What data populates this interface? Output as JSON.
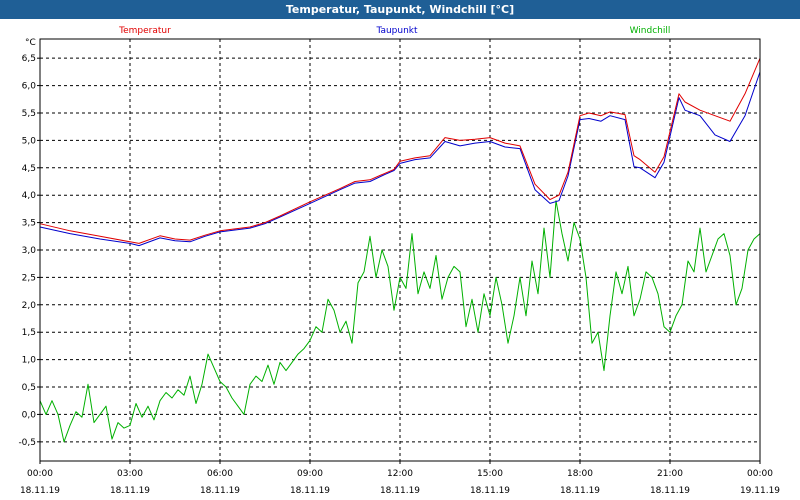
{
  "window": {
    "title": "Temperatur, Taupunkt, Windchill [°C]"
  },
  "chart_data": {
    "type": "line",
    "unit": "°C",
    "y_ticks": [
      "-0,5",
      "0,0",
      "0,5",
      "1,0",
      "1,5",
      "2,0",
      "2,5",
      "3,0",
      "3,5",
      "4,0",
      "4,5",
      "5,0",
      "5,5",
      "6,0",
      "6,5"
    ],
    "ylim": [
      -0.85,
      6.85
    ],
    "xlim_hours": [
      0,
      24
    ],
    "x_ticks": [
      {
        "time": "00:00",
        "date": "18.11.19"
      },
      {
        "time": "03:00",
        "date": "18.11.19"
      },
      {
        "time": "06:00",
        "date": "18.11.19"
      },
      {
        "time": "09:00",
        "date": "18.11.19"
      },
      {
        "time": "12:00",
        "date": "18.11.19"
      },
      {
        "time": "15:00",
        "date": "18.11.19"
      },
      {
        "time": "18:00",
        "date": "18.11.19"
      },
      {
        "time": "21:00",
        "date": "18.11.19"
      },
      {
        "time": "00:00",
        "date": "19.11.19"
      }
    ],
    "grid": true,
    "series": [
      {
        "name": "Temperatur",
        "color": "#e00000",
        "x": [
          0,
          1,
          2,
          3,
          3.3,
          4,
          4.5,
          5,
          5.5,
          6,
          7,
          7.5,
          8,
          9,
          10,
          10.5,
          11,
          11.5,
          11.8,
          12,
          12.5,
          13,
          13.5,
          14,
          14.5,
          15,
          15.5,
          16,
          16.5,
          17,
          17.3,
          17.6,
          18,
          18.3,
          18.7,
          19,
          19.5,
          19.8,
          20,
          20.5,
          20.8,
          21.3,
          21.5,
          22,
          22.5,
          23,
          23.5,
          24
        ],
        "values": [
          3.48,
          3.35,
          3.25,
          3.15,
          3.12,
          3.26,
          3.2,
          3.18,
          3.27,
          3.35,
          3.42,
          3.5,
          3.62,
          3.88,
          4.12,
          4.25,
          4.28,
          4.4,
          4.47,
          4.62,
          4.68,
          4.72,
          5.05,
          5.0,
          5.02,
          5.05,
          4.95,
          4.9,
          4.2,
          3.92,
          4.0,
          4.42,
          5.45,
          5.5,
          5.45,
          5.52,
          5.47,
          4.72,
          4.65,
          4.42,
          4.7,
          5.85,
          5.7,
          5.55,
          5.45,
          5.35,
          5.85,
          6.5
        ]
      },
      {
        "name": "Taupunkt",
        "color": "#0000cc",
        "x": [
          0,
          1,
          2,
          3,
          3.3,
          4,
          4.5,
          5,
          5.5,
          6,
          7,
          7.5,
          8,
          9,
          10,
          10.5,
          11,
          11.5,
          11.8,
          12,
          12.5,
          13,
          13.5,
          14,
          14.5,
          15,
          15.5,
          16,
          16.5,
          17,
          17.3,
          17.6,
          18,
          18.3,
          18.7,
          19,
          19.5,
          19.8,
          20,
          20.5,
          20.8,
          21.3,
          21.5,
          22,
          22.5,
          23,
          23.5,
          24
        ],
        "values": [
          3.42,
          3.3,
          3.2,
          3.12,
          3.08,
          3.22,
          3.17,
          3.15,
          3.25,
          3.33,
          3.4,
          3.48,
          3.6,
          3.85,
          4.1,
          4.22,
          4.25,
          4.38,
          4.45,
          4.58,
          4.65,
          4.68,
          4.98,
          4.9,
          4.95,
          4.98,
          4.88,
          4.85,
          4.1,
          3.85,
          3.9,
          4.35,
          5.38,
          5.4,
          5.35,
          5.45,
          5.38,
          4.52,
          4.5,
          4.32,
          4.6,
          5.78,
          5.55,
          5.45,
          5.1,
          4.98,
          5.45,
          6.25
        ]
      },
      {
        "name": "Windchill",
        "color": "#00b000",
        "x": [
          0,
          0.2,
          0.4,
          0.6,
          0.8,
          1,
          1.2,
          1.4,
          1.6,
          1.8,
          2,
          2.2,
          2.4,
          2.6,
          2.8,
          3,
          3.2,
          3.4,
          3.6,
          3.8,
          4,
          4.2,
          4.4,
          4.6,
          4.8,
          5,
          5.2,
          5.4,
          5.6,
          5.8,
          6,
          6.2,
          6.4,
          6.6,
          6.8,
          7,
          7.2,
          7.4,
          7.6,
          7.8,
          8,
          8.2,
          8.4,
          8.6,
          8.8,
          9,
          9.2,
          9.4,
          9.6,
          9.8,
          10,
          10.2,
          10.4,
          10.6,
          10.8,
          11,
          11.2,
          11.4,
          11.6,
          11.8,
          12,
          12.2,
          12.4,
          12.6,
          12.8,
          13,
          13.2,
          13.4,
          13.6,
          13.8,
          14,
          14.2,
          14.4,
          14.6,
          14.8,
          15,
          15.2,
          15.4,
          15.6,
          15.8,
          16,
          16.2,
          16.4,
          16.6,
          16.8,
          17,
          17.2,
          17.4,
          17.6,
          17.8,
          18,
          18.2,
          18.4,
          18.6,
          18.8,
          19,
          19.2,
          19.4,
          19.6,
          19.8,
          20,
          20.2,
          20.4,
          20.6,
          20.8,
          21,
          21.2,
          21.4,
          21.6,
          21.8,
          22,
          22.2,
          22.4,
          22.6,
          22.8,
          23,
          23.2,
          23.4,
          23.6,
          23.8,
          24
        ],
        "values": [
          0.25,
          0.0,
          0.25,
          0.0,
          -0.5,
          -0.2,
          0.05,
          -0.05,
          0.55,
          -0.15,
          0.0,
          0.15,
          -0.45,
          -0.15,
          -0.25,
          -0.2,
          0.2,
          -0.05,
          0.15,
          -0.1,
          0.25,
          0.4,
          0.3,
          0.45,
          0.35,
          0.7,
          0.2,
          0.55,
          1.1,
          0.85,
          0.6,
          0.5,
          0.3,
          0.15,
          0.0,
          0.55,
          0.7,
          0.6,
          0.9,
          0.55,
          0.95,
          0.8,
          0.95,
          1.1,
          1.2,
          1.35,
          1.6,
          1.5,
          2.1,
          1.9,
          1.5,
          1.7,
          1.3,
          2.4,
          2.6,
          3.25,
          2.5,
          3.0,
          2.7,
          1.9,
          2.5,
          2.3,
          3.3,
          2.2,
          2.6,
          2.3,
          2.9,
          2.1,
          2.5,
          2.7,
          2.6,
          1.6,
          2.1,
          1.5,
          2.2,
          1.8,
          2.5,
          2.0,
          1.3,
          1.8,
          2.5,
          1.8,
          2.8,
          2.2,
          3.4,
          2.5,
          3.9,
          3.3,
          2.8,
          3.5,
          3.2,
          2.5,
          1.3,
          1.5,
          0.8,
          1.8,
          2.6,
          2.2,
          2.7,
          1.8,
          2.1,
          2.6,
          2.5,
          2.2,
          1.6,
          1.5,
          1.8,
          2.0,
          2.8,
          2.6,
          3.4,
          2.6,
          2.9,
          3.2,
          3.3,
          2.9,
          2.0,
          2.3,
          3.0,
          3.2,
          3.3
        ]
      }
    ]
  }
}
